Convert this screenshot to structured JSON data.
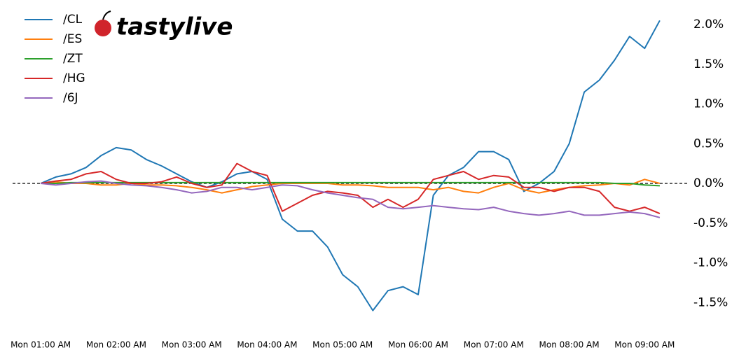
{
  "chart_data": {
    "type": "line",
    "logo": "tastylive",
    "x": [
      1.0,
      1.2,
      1.4,
      1.6,
      1.8,
      2.0,
      2.2,
      2.4,
      2.6,
      2.8,
      3.0,
      3.2,
      3.4,
      3.6,
      3.8,
      4.0,
      4.2,
      4.4,
      4.6,
      4.8,
      5.0,
      5.2,
      5.4,
      5.6,
      5.8,
      6.0,
      6.2,
      6.4,
      6.6,
      6.8,
      7.0,
      7.2,
      7.4,
      7.6,
      7.8,
      8.0,
      8.2,
      8.4,
      8.6,
      8.8,
      9.0,
      9.2
    ],
    "xlim": [
      0.6,
      9.6
    ],
    "xticks": [
      {
        "value": 1,
        "label": "Mon 01:00 AM"
      },
      {
        "value": 2,
        "label": "Mon 02:00 AM"
      },
      {
        "value": 3,
        "label": "Mon 03:00 AM"
      },
      {
        "value": 4,
        "label": "Mon 04:00 AM"
      },
      {
        "value": 5,
        "label": "Mon 05:00 AM"
      },
      {
        "value": 6,
        "label": "Mon 06:00 AM"
      },
      {
        "value": 7,
        "label": "Mon 07:00 AM"
      },
      {
        "value": 8,
        "label": "Mon 08:00 AM"
      },
      {
        "value": 9,
        "label": "Mon 09:00 AM"
      }
    ],
    "ylim": [
      -1.8,
      2.2
    ],
    "yticks": [
      {
        "value": -1.5,
        "label": "-1.5%"
      },
      {
        "value": -1.0,
        "label": "-1.0%"
      },
      {
        "value": -0.5,
        "label": "-0.5%"
      },
      {
        "value": 0,
        "label": "0.0%"
      },
      {
        "value": 0.5,
        "label": "0.5%"
      },
      {
        "value": 1.0,
        "label": "1.0%"
      },
      {
        "value": 1.5,
        "label": "1.5%"
      },
      {
        "value": 2.0,
        "label": "2.0%"
      }
    ],
    "y_axis_side": "right",
    "legend": "upper left",
    "series": [
      {
        "name": "/CL",
        "color": "#1f77b4",
        "values": [
          0,
          0.08,
          0.12,
          0.2,
          0.35,
          0.45,
          0.42,
          0.3,
          0.22,
          0.12,
          0.02,
          -0.05,
          0.02,
          0.12,
          0.15,
          0.05,
          -0.45,
          -0.6,
          -0.6,
          -0.8,
          -1.15,
          -1.3,
          -1.6,
          -1.35,
          -1.3,
          -1.4,
          -0.15,
          0.1,
          0.2,
          0.4,
          0.4,
          0.3,
          -0.1,
          0.0,
          0.15,
          0.5,
          1.15,
          1.3,
          1.55,
          1.85,
          1.7,
          2.05
        ]
      },
      {
        "name": "/ES",
        "color": "#ff7f0e",
        "values": [
          0,
          0.02,
          0.0,
          0.0,
          -0.02,
          -0.02,
          0.0,
          -0.02,
          -0.02,
          -0.03,
          -0.05,
          -0.08,
          -0.12,
          -0.08,
          -0.04,
          -0.02,
          0.0,
          0.0,
          0.0,
          0.0,
          -0.02,
          -0.02,
          -0.03,
          -0.05,
          -0.05,
          -0.05,
          -0.08,
          -0.05,
          -0.1,
          -0.12,
          -0.05,
          0.0,
          -0.08,
          -0.12,
          -0.08,
          -0.05,
          -0.03,
          -0.02,
          0.0,
          -0.02,
          0.05,
          0.0
        ]
      },
      {
        "name": "/ZT",
        "color": "#2ca02c",
        "values": [
          0,
          0.0,
          0.01,
          0.01,
          0.01,
          0.01,
          0.01,
          0.01,
          0.01,
          0.01,
          0.01,
          0.01,
          0.01,
          0.01,
          0.01,
          0.01,
          0.01,
          0.01,
          0.01,
          0.01,
          0.01,
          0.01,
          0.01,
          0.01,
          0.01,
          0.01,
          0.01,
          0.01,
          0.01,
          0.01,
          0.01,
          0.01,
          0.01,
          0.01,
          0.01,
          0.01,
          0.01,
          0.01,
          0.0,
          0.0,
          -0.02,
          -0.03
        ]
      },
      {
        "name": "/HG",
        "color": "#d62728",
        "values": [
          0,
          0.03,
          0.05,
          0.12,
          0.15,
          0.05,
          0.0,
          0.0,
          0.02,
          0.08,
          0.0,
          -0.05,
          -0.02,
          0.25,
          0.15,
          0.1,
          -0.35,
          -0.25,
          -0.15,
          -0.1,
          -0.12,
          -0.15,
          -0.3,
          -0.2,
          -0.3,
          -0.2,
          0.05,
          0.1,
          0.15,
          0.05,
          0.1,
          0.08,
          -0.05,
          -0.05,
          -0.1,
          -0.05,
          -0.05,
          -0.1,
          -0.3,
          -0.35,
          -0.3,
          -0.38
        ]
      },
      {
        "name": "/6J",
        "color": "#9467bd",
        "values": [
          0,
          -0.02,
          0.0,
          0.02,
          0.03,
          0.0,
          -0.02,
          -0.03,
          -0.05,
          -0.08,
          -0.12,
          -0.1,
          -0.05,
          -0.05,
          -0.08,
          -0.05,
          -0.02,
          -0.03,
          -0.08,
          -0.12,
          -0.15,
          -0.18,
          -0.2,
          -0.3,
          -0.32,
          -0.3,
          -0.28,
          -0.3,
          -0.32,
          -0.33,
          -0.3,
          -0.35,
          -0.38,
          -0.4,
          -0.38,
          -0.35,
          -0.4,
          -0.4,
          -0.38,
          -0.36,
          -0.38,
          -0.43
        ]
      }
    ]
  }
}
